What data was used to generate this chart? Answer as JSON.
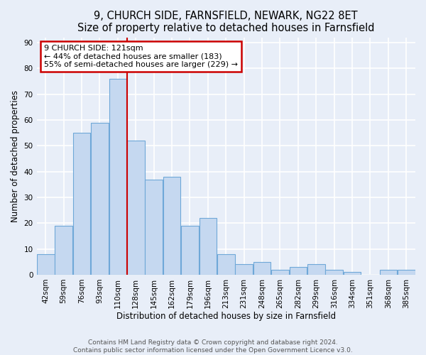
{
  "title": "9, CHURCH SIDE, FARNSFIELD, NEWARK, NG22 8ET",
  "subtitle": "Size of property relative to detached houses in Farnsfield",
  "xlabel": "Distribution of detached houses by size in Farnsfield",
  "ylabel": "Number of detached properties",
  "bin_labels": [
    "42sqm",
    "59sqm",
    "76sqm",
    "93sqm",
    "110sqm",
    "128sqm",
    "145sqm",
    "162sqm",
    "179sqm",
    "196sqm",
    "213sqm",
    "231sqm",
    "248sqm",
    "265sqm",
    "282sqm",
    "299sqm",
    "316sqm",
    "334sqm",
    "351sqm",
    "368sqm",
    "385sqm"
  ],
  "bar_values": [
    8,
    19,
    55,
    59,
    76,
    52,
    37,
    38,
    19,
    22,
    8,
    4,
    5,
    2,
    3,
    4,
    2,
    1,
    0,
    2,
    2
  ],
  "bar_color": "#c5d8f0",
  "bar_edge_color": "#6fa8d8",
  "vline_color": "#cc0000",
  "annotation_title": "9 CHURCH SIDE: 121sqm",
  "annotation_line1": "← 44% of detached houses are smaller (183)",
  "annotation_line2": "55% of semi-detached houses are larger (229) →",
  "annotation_box_color": "#ffffff",
  "annotation_box_edge": "#cc0000",
  "yticks": [
    0,
    10,
    20,
    30,
    40,
    50,
    60,
    70,
    80,
    90
  ],
  "ylim": [
    0,
    92
  ],
  "footer1": "Contains HM Land Registry data © Crown copyright and database right 2024.",
  "footer2": "Contains public sector information licensed under the Open Government Licence v3.0.",
  "background_color": "#e8eef8",
  "grid_color": "#ffffff",
  "title_fontsize": 10.5,
  "axis_label_fontsize": 8.5,
  "tick_fontsize": 7.5,
  "footer_fontsize": 6.5
}
